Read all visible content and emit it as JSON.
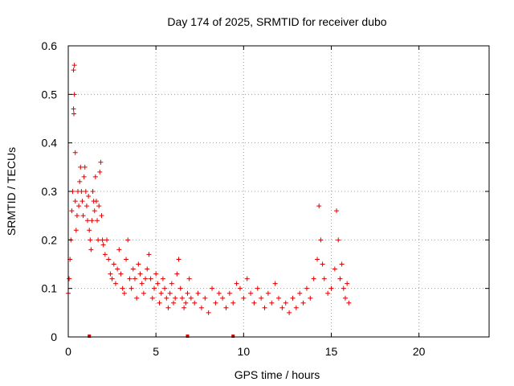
{
  "chart_data": {
    "type": "scatter",
    "title": "Day 174 of 2025, SRMTID for receiver dubo",
    "xlabel": "GPS time / hours",
    "ylabel": "SRMTID / TECUs",
    "xlim": [
      0,
      24
    ],
    "ylim": [
      0,
      0.6
    ],
    "x_ticks": [
      0,
      5,
      10,
      15,
      20
    ],
    "y_ticks": [
      0,
      0.1,
      0.2,
      0.3,
      0.4,
      0.5,
      0.6
    ],
    "x_tick_labels": [
      "0",
      "5",
      "10",
      "15",
      "20"
    ],
    "y_tick_labels": [
      "0",
      "0.1",
      "0.2",
      "0.3",
      "0.4",
      "0.5",
      "0.6"
    ],
    "grid": true,
    "marker": "plus",
    "series_color": "#e00000",
    "data_gap_markers_hours": [
      1.2,
      6.8,
      9.4
    ],
    "series": [
      {
        "name": "SRMTID",
        "x": [
          0.0,
          0.05,
          0.1,
          0.15,
          0.2,
          0.25,
          0.3,
          0.3,
          0.32,
          0.35,
          0.35,
          0.4,
          0.4,
          0.45,
          0.5,
          0.55,
          0.6,
          0.65,
          0.7,
          0.75,
          0.8,
          0.85,
          0.9,
          0.95,
          1.0,
          1.05,
          1.1,
          1.15,
          1.2,
          1.25,
          1.3,
          1.35,
          1.4,
          1.45,
          1.5,
          1.55,
          1.6,
          1.65,
          1.7,
          1.75,
          1.8,
          1.85,
          1.9,
          1.95,
          2.0,
          2.1,
          2.2,
          2.3,
          2.4,
          2.5,
          2.6,
          2.7,
          2.8,
          2.9,
          3.0,
          3.1,
          3.2,
          3.3,
          3.4,
          3.5,
          3.6,
          3.7,
          3.8,
          3.9,
          4.0,
          4.1,
          4.2,
          4.3,
          4.4,
          4.5,
          4.6,
          4.7,
          4.8,
          4.9,
          5.0,
          5.1,
          5.2,
          5.3,
          5.4,
          5.5,
          5.6,
          5.7,
          5.8,
          5.9,
          6.0,
          6.1,
          6.2,
          6.3,
          6.4,
          6.5,
          6.6,
          6.7,
          6.8,
          6.9,
          7.0,
          7.2,
          7.4,
          7.6,
          7.8,
          8.0,
          8.2,
          8.4,
          8.6,
          8.8,
          9.0,
          9.2,
          9.4,
          9.6,
          9.8,
          10.0,
          10.2,
          10.4,
          10.6,
          10.8,
          11.0,
          11.2,
          11.4,
          11.6,
          11.8,
          12.0,
          12.2,
          12.4,
          12.6,
          12.8,
          13.0,
          13.2,
          13.4,
          13.6,
          13.8,
          14.0,
          14.2,
          14.3,
          14.4,
          14.5,
          14.6,
          14.8,
          15.0,
          15.2,
          15.3,
          15.4,
          15.5,
          15.6,
          15.7,
          15.8,
          15.9,
          16.0
        ],
        "y": [
          0.09,
          0.12,
          0.16,
          0.2,
          0.26,
          0.3,
          0.55,
          0.47,
          0.46,
          0.5,
          0.56,
          0.38,
          0.28,
          0.22,
          0.25,
          0.3,
          0.27,
          0.32,
          0.35,
          0.3,
          0.28,
          0.25,
          0.33,
          0.35,
          0.3,
          0.27,
          0.24,
          0.29,
          0.22,
          0.2,
          0.18,
          0.24,
          0.3,
          0.28,
          0.26,
          0.33,
          0.28,
          0.24,
          0.2,
          0.27,
          0.34,
          0.36,
          0.25,
          0.2,
          0.19,
          0.17,
          0.2,
          0.16,
          0.13,
          0.12,
          0.15,
          0.11,
          0.14,
          0.18,
          0.13,
          0.1,
          0.09,
          0.16,
          0.2,
          0.12,
          0.1,
          0.14,
          0.12,
          0.08,
          0.15,
          0.13,
          0.11,
          0.09,
          0.12,
          0.14,
          0.17,
          0.12,
          0.08,
          0.1,
          0.13,
          0.11,
          0.07,
          0.09,
          0.12,
          0.1,
          0.08,
          0.06,
          0.09,
          0.11,
          0.07,
          0.08,
          0.13,
          0.16,
          0.1,
          0.08,
          0.06,
          0.07,
          0.09,
          0.12,
          0.08,
          0.07,
          0.09,
          0.06,
          0.08,
          0.05,
          0.1,
          0.07,
          0.09,
          0.08,
          0.06,
          0.09,
          0.07,
          0.11,
          0.1,
          0.08,
          0.12,
          0.09,
          0.07,
          0.1,
          0.08,
          0.06,
          0.09,
          0.07,
          0.11,
          0.08,
          0.06,
          0.07,
          0.05,
          0.08,
          0.06,
          0.09,
          0.07,
          0.1,
          0.08,
          0.12,
          0.16,
          0.27,
          0.2,
          0.15,
          0.12,
          0.09,
          0.1,
          0.14,
          0.26,
          0.2,
          0.12,
          0.15,
          0.1,
          0.08,
          0.11,
          0.07
        ]
      }
    ]
  }
}
